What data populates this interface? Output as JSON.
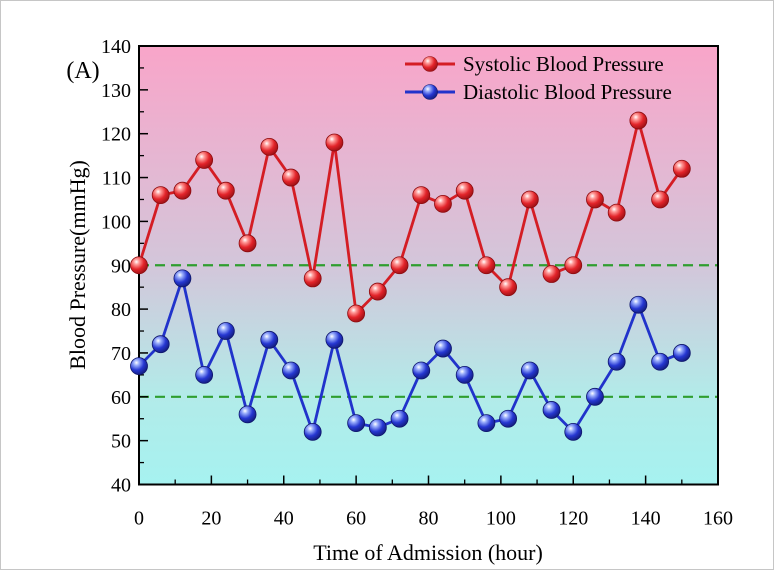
{
  "figure": {
    "panel_label": "(A)"
  },
  "chart_data": {
    "type": "line",
    "title": "",
    "xlabel": "Time of Admission (hour)",
    "ylabel": "Blood Pressure(mmHg)",
    "xlim": [
      0,
      160
    ],
    "ylim": [
      40,
      140
    ],
    "xticks": [
      0,
      20,
      40,
      60,
      80,
      100,
      120,
      140,
      160
    ],
    "yticks": [
      40,
      50,
      60,
      70,
      80,
      90,
      100,
      110,
      120,
      130,
      140
    ],
    "x_minor_tick_step": 10,
    "y_minor_tick_step": 5,
    "grid": false,
    "legend_position": "top-inside",
    "x": [
      0,
      6,
      12,
      18,
      24,
      30,
      36,
      42,
      48,
      54,
      60,
      66,
      72,
      78,
      84,
      90,
      96,
      102,
      108,
      114,
      120,
      126,
      132,
      138,
      144,
      150
    ],
    "series": [
      {
        "name": "Systolic Blood Pressure",
        "color": "#d41d24",
        "marker": "ball",
        "values": [
          90,
          106,
          107,
          114,
          107,
          95,
          117,
          110,
          87,
          118,
          79,
          84,
          90,
          106,
          104,
          107,
          90,
          85,
          105,
          88,
          90,
          105,
          102,
          123,
          105,
          112
        ]
      },
      {
        "name": "Diastolic Blood Pressure",
        "color": "#2133cb",
        "marker": "ball",
        "values": [
          67,
          72,
          87,
          65,
          75,
          56,
          73,
          66,
          52,
          73,
          54,
          53,
          55,
          66,
          71,
          65,
          54,
          55,
          66,
          57,
          52,
          60,
          68,
          81,
          68,
          70
        ]
      }
    ],
    "reference_lines": [
      {
        "y": 90,
        "color": "#2f9e2f",
        "style": "dashed"
      },
      {
        "y": 60,
        "color": "#2f9e2f",
        "style": "dashed"
      }
    ],
    "background_gradient": [
      "#f9a5c9",
      "#d3c6da",
      "#b2ebe9",
      "#a6f2f0"
    ]
  }
}
